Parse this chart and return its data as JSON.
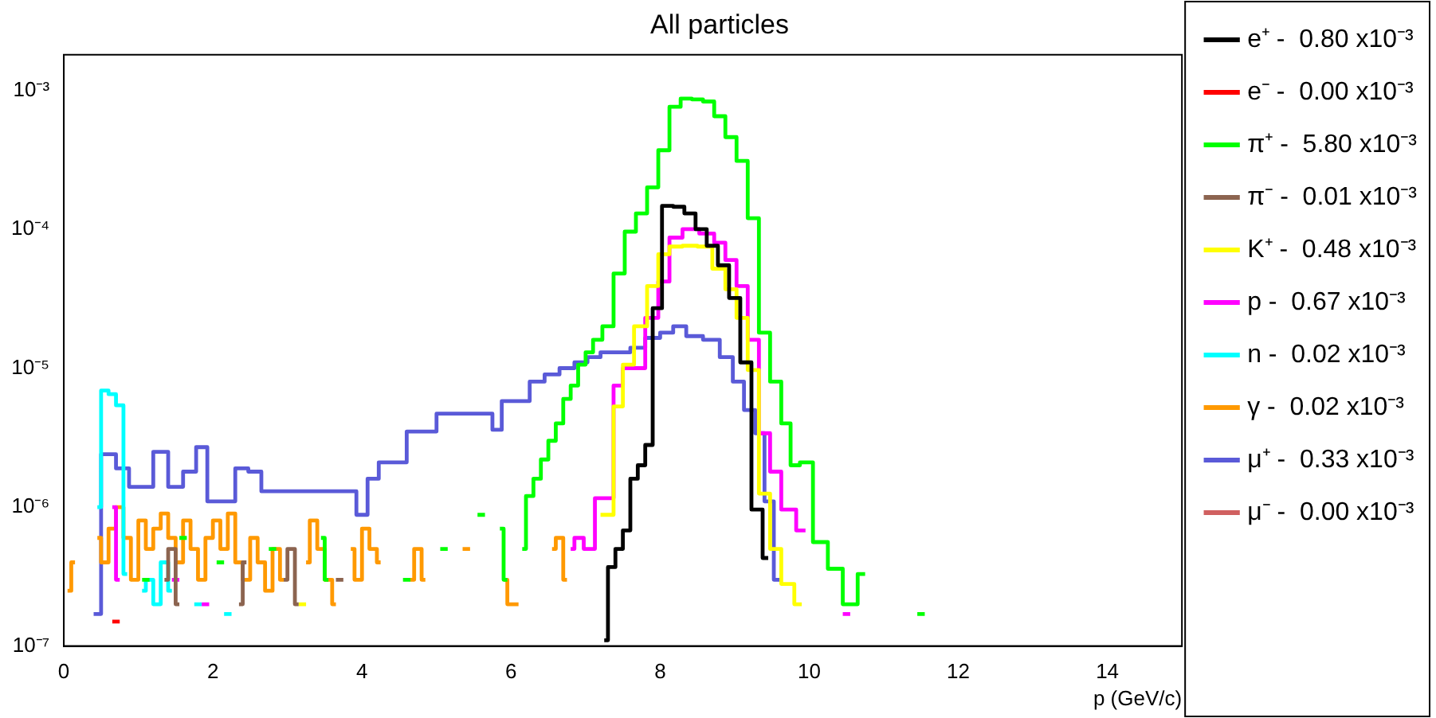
{
  "chart_data": {
    "type": "step",
    "title": "All particles",
    "xlabel": "p (GeV/c)",
    "log": "y",
    "grid": false,
    "legend": "right",
    "marker": "none",
    "xlim": [
      0,
      15
    ],
    "xticks": [
      0,
      2,
      4,
      6,
      8,
      10,
      12,
      14
    ],
    "ylim": [
      1e-07,
      0.0018
    ],
    "yticks": [
      {
        "value": 1e-07,
        "label": "10⁻⁷"
      },
      {
        "value": 1e-06,
        "label": "10⁻⁶"
      },
      {
        "value": 1e-05,
        "label": "10⁻⁵"
      },
      {
        "value": 0.0001,
        "label": "10⁻⁴"
      },
      {
        "value": 0.001,
        "label": "10⁻³"
      }
    ],
    "series": [
      {
        "name": "e⁺ -  0.80 x10⁻³",
        "color": "#000000",
        "x": [
          7.25,
          7.35,
          7.45,
          7.55,
          7.65,
          7.75,
          7.85,
          7.95,
          8.1,
          8.25,
          8.4,
          8.55,
          8.7,
          8.85,
          9.0,
          9.15,
          9.3,
          9.45
        ],
        "values": [
          1.1e-07,
          3.7e-07,
          5e-07,
          6.8e-07,
          1.6e-06,
          2e-06,
          2.8e-06,
          2.7e-05,
          0.000147,
          0.000145,
          0.00013,
          0.0001,
          7.6e-05,
          5.5e-05,
          3.2e-05,
          1.1e-05,
          9.6e-07,
          4.3e-07
        ]
      },
      {
        "name": "e⁻ -  0.00 x10⁻³",
        "color": "#ff0000",
        "x": [
          0.65,
          0.75
        ],
        "values": [
          1.5e-07,
          1.5e-07
        ]
      },
      {
        "name": "π⁺ -  5.80 x10⁻³",
        "color": "#00ff00",
        "x": [
          1.05,
          1.15,
          1.25,
          1.55,
          1.65,
          1.75,
          2.05,
          2.15,
          2.25,
          2.75,
          2.85,
          2.95,
          3.45,
          3.55,
          3.65,
          4.55,
          4.65,
          4.75,
          5.05,
          5.15,
          5.25,
          5.55,
          5.65,
          5.75,
          5.85,
          5.95,
          6.05,
          6.15,
          6.25,
          6.35,
          6.45,
          6.55,
          6.65,
          6.75,
          6.85,
          6.95,
          7.05,
          7.15,
          7.3,
          7.45,
          7.6,
          7.75,
          7.9,
          8.05,
          8.2,
          8.35,
          8.5,
          8.65,
          8.8,
          8.95,
          9.1,
          9.25,
          9.4,
          9.55,
          9.7,
          9.8,
          9.95,
          10.15,
          10.35,
          10.55,
          10.75,
          10.85,
          11.45,
          11.55
        ],
        "values": [
          3e-07,
          3e-07,
          null,
          6e-07,
          6e-07,
          null,
          4e-07,
          4e-07,
          null,
          5e-07,
          5e-07,
          null,
          6e-07,
          3e-07,
          null,
          3e-07,
          3e-07,
          null,
          5e-07,
          5e-07,
          null,
          8.8e-07,
          8.8e-07,
          null,
          7e-07,
          3e-07,
          null,
          5e-07,
          1.2e-06,
          1.6e-06,
          2.2e-06,
          3e-06,
          4e-06,
          6e-06,
          7.5e-06,
          1.06e-05,
          1.3e-05,
          1.6e-05,
          2e-05,
          4.8e-05,
          9.6e-05,
          0.00013,
          0.0002,
          0.00037,
          0.00076,
          0.00087,
          0.00086,
          0.00083,
          0.00065,
          0.00046,
          0.00031,
          0.00012,
          1.8e-05,
          8e-06,
          4e-06,
          2e-06,
          2.1e-06,
          5.6e-07,
          3.6e-07,
          2e-07,
          3.3e-07,
          null,
          1.7e-07,
          1.7e-07
        ]
      },
      {
        "name": "π⁻ -  0.01 x10⁻³",
        "color": "#8c6450",
        "x": [
          1.35,
          1.45,
          1.55,
          1.65,
          2.35,
          2.45,
          2.55,
          2.95,
          3.05,
          3.15,
          3.25,
          3.65,
          3.75
        ],
        "values": [
          3e-07,
          5e-07,
          2e-07,
          null,
          2e-07,
          4e-07,
          null,
          3e-07,
          5e-07,
          2e-07,
          null,
          3e-07,
          3e-07
        ]
      },
      {
        "name": "K⁺ -  0.48 x10⁻³",
        "color": "#ffff00",
        "x": [
          3.15,
          3.25,
          3.35,
          7.2,
          7.3,
          7.45,
          7.55,
          7.75,
          7.9,
          8.05,
          8.2,
          8.4,
          8.6,
          8.8,
          8.95,
          9.1,
          9.25,
          9.4,
          9.55,
          9.7,
          9.9
        ],
        "values": [
          2e-07,
          2e-07,
          null,
          8.8e-07,
          8.8e-07,
          5.3e-06,
          1.06e-05,
          2e-05,
          3.9e-05,
          6.6e-05,
          7.5e-05,
          7.6e-05,
          7.5e-05,
          5.2e-05,
          3.7e-05,
          2.3e-05,
          9.7e-06,
          1.25e-06,
          5e-07,
          2.8e-07,
          2e-07
        ]
      },
      {
        "name": "p -  0.67 x10⁻³",
        "color": "#ff00ff",
        "x": [
          0.65,
          0.75,
          0.85,
          1.45,
          1.55,
          1.65,
          1.85,
          1.95,
          2.05,
          6.8,
          6.9,
          7.05,
          7.2,
          7.3,
          7.45,
          7.55,
          7.7,
          7.9,
          8.05,
          8.2,
          8.4,
          8.65,
          8.8,
          8.95,
          9.1,
          9.25,
          9.4,
          9.55,
          9.7,
          9.95,
          10.1,
          10.45,
          10.55
        ],
        "values": [
          1e-06,
          3e-07,
          null,
          3e-07,
          3e-07,
          null,
          2e-07,
          2e-07,
          null,
          5e-07,
          6e-07,
          5e-07,
          1.16e-06,
          1.16e-06,
          7.5e-06,
          1e-05,
          1e-05,
          2.3e-05,
          4.2e-05,
          8.7e-05,
          0.0001,
          9.3e-05,
          8e-05,
          6e-05,
          3.9e-05,
          1.6e-05,
          3.4e-06,
          1.8e-06,
          9.6e-07,
          6.8e-07,
          null,
          1.7e-07,
          1.7e-07
        ]
      },
      {
        "name": "n -  0.02 x10⁻³",
        "color": "#00ffff",
        "x": [
          0.45,
          0.55,
          0.65,
          0.75,
          0.85,
          0.95,
          1.05,
          1.15,
          1.25,
          1.35,
          1.45,
          1.55,
          1.75,
          1.85,
          1.95,
          2.15,
          2.25
        ],
        "values": [
          1e-06,
          6.9e-06,
          6.5e-06,
          5.4e-06,
          3.3e-07,
          null,
          2.5e-07,
          3e-07,
          2e-07,
          4e-07,
          2.5e-07,
          null,
          2e-07,
          2e-07,
          null,
          1.7e-07,
          1.7e-07
        ]
      },
      {
        "name": "γ -  0.02 x10⁻³",
        "color": "#ff9900",
        "x": [
          0.05,
          0.15,
          0.25,
          0.45,
          0.55,
          0.65,
          0.75,
          0.85,
          0.95,
          1.05,
          1.15,
          1.25,
          1.35,
          1.45,
          1.55,
          1.65,
          1.75,
          1.85,
          1.95,
          2.05,
          2.15,
          2.25,
          2.35,
          2.45,
          2.55,
          2.65,
          2.75,
          2.85,
          2.95,
          3.05,
          3.25,
          3.35,
          3.45,
          3.55,
          3.65,
          3.75,
          3.85,
          3.95,
          4.05,
          4.15,
          4.25,
          4.35,
          4.65,
          4.75,
          4.85,
          4.95,
          5.35,
          5.45,
          5.55,
          5.9,
          6.0,
          6.1,
          6.2,
          6.55,
          6.65,
          6.75
        ],
        "values": [
          2.5e-07,
          4e-07,
          null,
          6e-07,
          4e-07,
          7e-07,
          1e-06,
          6e-07,
          3e-07,
          8e-07,
          5e-07,
          7e-07,
          9e-07,
          6e-07,
          4e-07,
          8e-07,
          5e-07,
          3e-07,
          6e-07,
          8e-07,
          5e-07,
          9e-07,
          4e-07,
          3e-07,
          6e-07,
          4e-07,
          2.5e-07,
          5e-07,
          3e-07,
          null,
          4e-07,
          8e-07,
          5e-07,
          3e-07,
          2e-07,
          null,
          5e-07,
          3e-07,
          7e-07,
          5e-07,
          4e-07,
          null,
          3e-07,
          5e-07,
          3e-07,
          null,
          5e-07,
          5e-07,
          null,
          3e-07,
          2e-07,
          2e-07,
          null,
          5e-07,
          6e-07,
          3e-07
        ]
      },
      {
        "name": "μ⁺ -  0.33 x10⁻³",
        "color": "#5a5ad8",
        "x": [
          0.4,
          0.6,
          0.8,
          0.95,
          1.1,
          1.3,
          1.5,
          1.7,
          1.85,
          2.0,
          2.2,
          2.4,
          2.55,
          2.75,
          3.0,
          3.3,
          3.6,
          3.85,
          4.0,
          4.15,
          4.3,
          4.5,
          4.7,
          4.9,
          5.1,
          5.3,
          5.5,
          5.7,
          5.8,
          5.95,
          6.15,
          6.35,
          6.55,
          6.75,
          6.95,
          7.1,
          7.3,
          7.5,
          7.7,
          7.9,
          8.1,
          8.25,
          8.45,
          8.7,
          8.9,
          9.05,
          9.2,
          9.35,
          9.45,
          9.6
        ],
        "values": [
          1.7e-07,
          2.4e-06,
          1.9e-06,
          1.4e-06,
          1.4e-06,
          2.5e-06,
          1.4e-06,
          1.8e-06,
          2.7e-06,
          1.1e-06,
          1.1e-06,
          1.9e-06,
          1.8e-06,
          1.3e-06,
          1.3e-06,
          1.3e-06,
          1.3e-06,
          1.3e-06,
          8.8e-07,
          1.6e-06,
          2.1e-06,
          2.1e-06,
          3.5e-06,
          3.5e-06,
          4.7e-06,
          4.7e-06,
          4.7e-06,
          4.7e-06,
          3.6e-06,
          5.8e-06,
          5.8e-06,
          8e-06,
          9e-06,
          1e-05,
          1.1e-05,
          1.2e-05,
          1.3e-05,
          1.3e-05,
          1.4e-05,
          1.65e-05,
          1.8e-05,
          2e-05,
          1.7e-05,
          1.6e-05,
          1.2e-05,
          8e-06,
          5e-06,
          3.4e-06,
          1.1e-06,
          3e-07
        ]
      },
      {
        "name": "μ⁻ -  0.00 x10⁻³",
        "color": "#d06060"
      }
    ]
  }
}
